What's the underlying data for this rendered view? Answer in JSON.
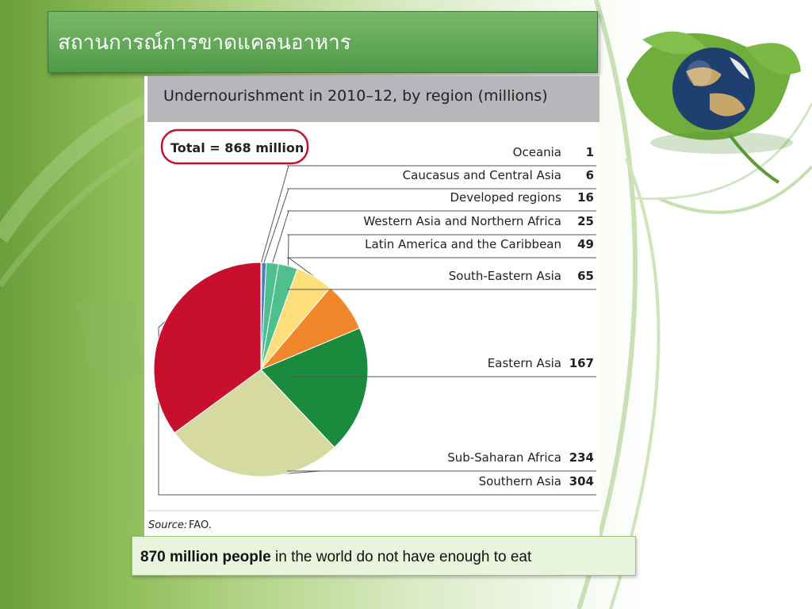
{
  "slide": {
    "title": "สถานการณ์การขาดแคลนอาหาร"
  },
  "chart_data": {
    "type": "pie",
    "title": "Undernourishment in 2010–12, by region (millions)",
    "total_label": "Total = 868 million",
    "source_label": "Source:",
    "source_name": "FAO.",
    "slices": [
      {
        "label": "Oceania",
        "value": 1,
        "color": "#c8c8c8"
      },
      {
        "label": "Caucasus and Central Asia",
        "value": 6,
        "color": "#4b7fc1"
      },
      {
        "label": "Developed regions",
        "value": 16,
        "color": "#4fc08d"
      },
      {
        "label": "Western Asia and Northern Africa",
        "value": 25,
        "color": "#fde07a"
      },
      {
        "label": "Latin America and the Caribbean",
        "value": 49,
        "color": "#f0872a"
      },
      {
        "label": "South-Eastern Asia",
        "value": 65,
        "color": "#1a8a3c"
      },
      {
        "label": "Eastern Asia",
        "value": 167,
        "color": "#d2d99a"
      },
      {
        "label": "Sub-Saharan Africa",
        "value": 234,
        "color": "#c8102e"
      },
      {
        "label": "Southern Asia",
        "value": 304,
        "color": "#c8102e"
      }
    ],
    "legend_rows": [
      {
        "label": "Oceania",
        "value": "1"
      },
      {
        "label": "Caucasus and Central Asia",
        "value": "6"
      },
      {
        "label": "Developed regions",
        "value": "16"
      },
      {
        "label": "Western Asia and Northern Africa",
        "value": "25"
      },
      {
        "label": "Latin America and the Caribbean",
        "value": "49"
      },
      {
        "label": "South-Eastern Asia",
        "value": "65"
      },
      {
        "label": "Eastern Asia",
        "value": "167"
      },
      {
        "label": "Sub-Saharan Africa",
        "value": "234"
      },
      {
        "label": "Southern Asia",
        "value": "304"
      }
    ]
  },
  "caption": {
    "bold": "870 million people",
    "rest": " in the world do not have enough to eat"
  }
}
